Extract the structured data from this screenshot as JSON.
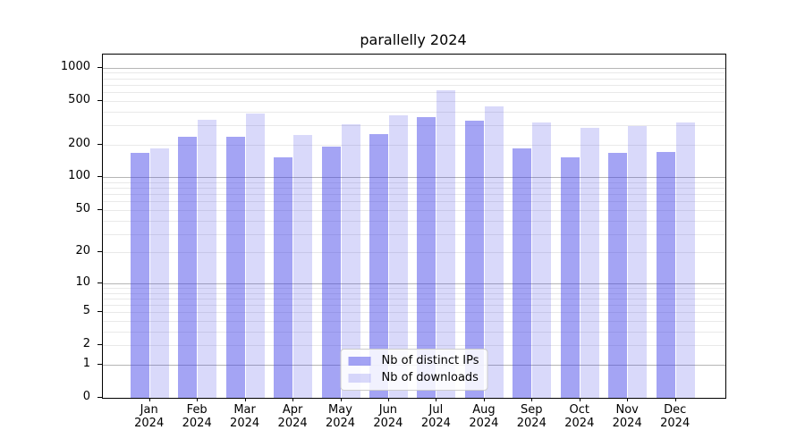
{
  "title": "parallelly 2024",
  "colors": {
    "bar_dark": "rgba(64,64,232,0.48)",
    "bar_light": "rgba(64,64,232,0.20)",
    "grid_major": "#b5b5b5",
    "grid_minor": "#e9e9e9",
    "spine": "#000000",
    "legend_border": "#cccccc"
  },
  "legend": {
    "position": "lower center",
    "items": [
      {
        "label": "Nb of distinct IPs",
        "swatch": "dark"
      },
      {
        "label": "Nb of downloads",
        "swatch": "light"
      }
    ]
  },
  "chart_data": {
    "type": "bar",
    "title": "parallelly 2024",
    "scale": "log1p",
    "grid": "on",
    "legend_position": "lower center",
    "categories": [
      "Jan",
      "Feb",
      "Mar",
      "Apr",
      "May",
      "Jun",
      "Jul",
      "Aug",
      "Sep",
      "Oct",
      "Nov",
      "Dec"
    ],
    "category_year": "2024",
    "series": [
      {
        "name": "Nb of distinct IPs",
        "color": "rgba(64,64,232,0.48)",
        "values": [
          168,
          236,
          237,
          154,
          192,
          247,
          359,
          332,
          186,
          154,
          169,
          171
        ]
      },
      {
        "name": "Nb of downloads",
        "color": "rgba(64,64,232,0.20)",
        "values": [
          185,
          336,
          387,
          246,
          308,
          370,
          627,
          448,
          320,
          282,
          293,
          316
        ]
      }
    ],
    "yticks": [
      0,
      1,
      2,
      5,
      10,
      20,
      50,
      100,
      200,
      500,
      1000
    ],
    "major_decades": [
      1,
      10,
      100,
      1000
    ],
    "xlabel": "",
    "ylabel": "",
    "ylim": [
      0,
      1320
    ]
  }
}
